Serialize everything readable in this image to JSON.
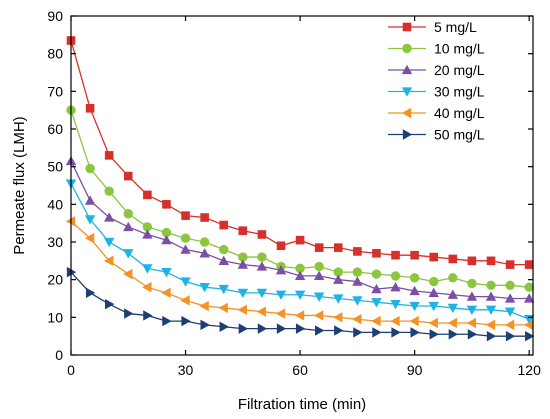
{
  "chart_data": {
    "type": "line",
    "xlabel": "Filtration time (min)",
    "ylabel": "Permeate flux (LMH)",
    "xlim": [
      0,
      121
    ],
    "ylim": [
      0,
      90
    ],
    "xticks": [
      0,
      30,
      60,
      90,
      120
    ],
    "yticks": [
      0,
      10,
      20,
      30,
      40,
      50,
      60,
      70,
      80,
      90
    ],
    "legend_position": "top-right",
    "grid": false,
    "x": [
      0,
      5,
      10,
      15,
      20,
      25,
      30,
      35,
      40,
      45,
      50,
      55,
      60,
      65,
      70,
      75,
      80,
      85,
      90,
      95,
      100,
      105,
      110,
      115,
      120
    ],
    "series": [
      {
        "name": "5 mg/L",
        "color": "#d6302b",
        "marker": "square",
        "values": [
          83.5,
          65.5,
          53,
          47.5,
          42.5,
          40,
          37,
          36.5,
          34.5,
          33,
          32,
          29,
          30.5,
          28.5,
          28.5,
          27.5,
          27,
          26.5,
          26.5,
          26,
          25.5,
          25,
          25,
          24,
          24
        ]
      },
      {
        "name": "10 mg/L",
        "color": "#8cc63f",
        "marker": "circle",
        "values": [
          65,
          49.5,
          43.5,
          37.5,
          34,
          32.5,
          31,
          30,
          28,
          26,
          26,
          23.5,
          23,
          23.5,
          22,
          22,
          21.5,
          21,
          20.5,
          19.5,
          20.5,
          19,
          18.5,
          18.5,
          18
        ]
      },
      {
        "name": "20 mg/L",
        "color": "#7b4fa6",
        "marker": "triangle-up",
        "values": [
          51.5,
          41,
          36.5,
          34,
          32,
          30.5,
          28,
          27,
          25,
          24,
          23.5,
          22.5,
          21,
          21,
          20,
          19.5,
          17.5,
          18,
          17,
          16.5,
          16,
          15.5,
          15.5,
          15,
          15
        ]
      },
      {
        "name": "30 mg/L",
        "color": "#1fb3e5",
        "marker": "triangle-down",
        "values": [
          45.5,
          36,
          30,
          27,
          23,
          22,
          19.5,
          18,
          17.5,
          16.5,
          16.5,
          16,
          16,
          15.5,
          15,
          14.5,
          14,
          13.5,
          13,
          13,
          12.5,
          12,
          12,
          11.5,
          9.5
        ]
      },
      {
        "name": "40 mg/L",
        "color": "#f39325",
        "marker": "triangle-left",
        "values": [
          35.5,
          31,
          25,
          21.5,
          18,
          16.5,
          14.5,
          13,
          12.5,
          12,
          11.5,
          11,
          10.5,
          10.5,
          10,
          9.5,
          9,
          9,
          9,
          8.5,
          8.5,
          8.5,
          8,
          8,
          8
        ]
      },
      {
        "name": "50 mg/L",
        "color": "#1e3f73",
        "marker": "triangle-right",
        "values": [
          22,
          16.5,
          13.5,
          11,
          10.5,
          9,
          9,
          8,
          7.5,
          7,
          7,
          7,
          7,
          6.5,
          6.5,
          6,
          6,
          6,
          6,
          5.5,
          5.5,
          5.5,
          5,
          5,
          5
        ]
      }
    ]
  }
}
